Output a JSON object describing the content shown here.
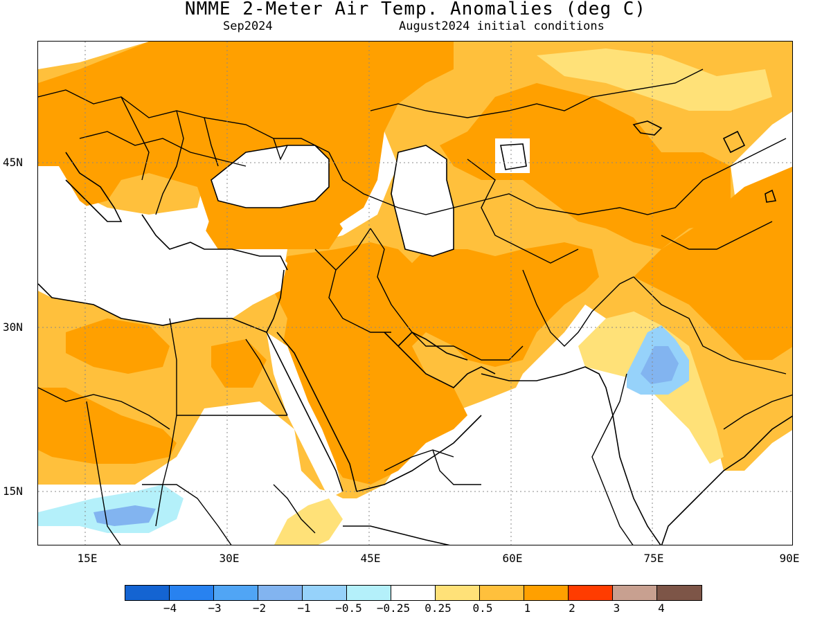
{
  "header": {
    "title": "NMME 2-Meter Air Temp. Anomalies (deg C)",
    "valid_month": "Sep2024",
    "initial_conditions": "August2024 initial conditions"
  },
  "axes": {
    "lat_labels": [
      "45N",
      "30N",
      "15N"
    ],
    "lon_labels": [
      "15E",
      "30E",
      "45E",
      "60E",
      "75E",
      "90E"
    ]
  },
  "legend": {
    "colors": [
      "#1464d2",
      "#2882f0",
      "#50a5f5",
      "#82b4f0",
      "#96d2fa",
      "#b4f0fa",
      "#ffffff",
      "#ffe178",
      "#ffc03c",
      "#ffa000",
      "#ff3c00",
      "#c8a090",
      "#7d5547"
    ],
    "labels": [
      "-4",
      "-3",
      "-2",
      "-1",
      "-0.5",
      "-0.25",
      "0.25",
      "0.5",
      "1",
      "2",
      "3",
      "4"
    ]
  }
}
